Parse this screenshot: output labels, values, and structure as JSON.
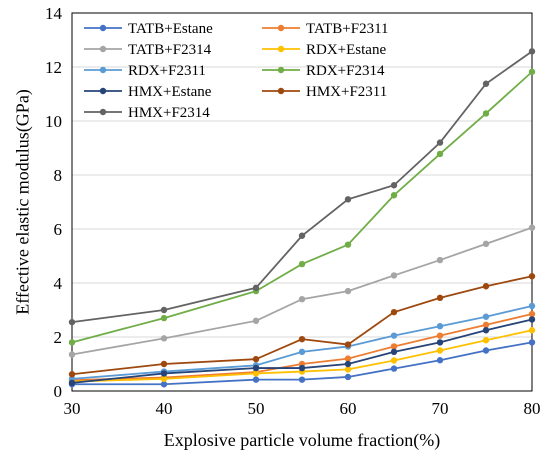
{
  "chart_data": {
    "type": "line",
    "title": "",
    "xlabel": "Explosive particle volume fraction(%)",
    "ylabel": "Effective elastic modulus(GPa)",
    "xlim": [
      30,
      80
    ],
    "ylim": [
      0,
      14
    ],
    "x_ticks": [
      30,
      40,
      50,
      60,
      70,
      80
    ],
    "y_ticks": [
      0,
      2,
      4,
      6,
      8,
      10,
      12,
      14
    ],
    "grid": "y",
    "legend_position": "top-left",
    "x": [
      30,
      40,
      50,
      55,
      60,
      65,
      70,
      75,
      80
    ],
    "series": [
      {
        "name": "TATB+Estane",
        "color": "#4472C4",
        "values": [
          0.25,
          0.25,
          0.42,
          0.42,
          0.52,
          0.83,
          1.14,
          1.5,
          1.8
        ]
      },
      {
        "name": "TATB+F2311",
        "color": "#ED7D31",
        "values": [
          0.4,
          0.5,
          0.7,
          1.0,
          1.2,
          1.65,
          2.05,
          2.45,
          2.85
        ]
      },
      {
        "name": "TATB+F2314",
        "color": "#A5A5A5",
        "values": [
          1.35,
          1.95,
          2.6,
          3.4,
          3.7,
          4.28,
          4.85,
          5.45,
          6.05
        ]
      },
      {
        "name": "RDX+Estane",
        "color": "#FFC000",
        "values": [
          0.35,
          0.45,
          0.65,
          0.72,
          0.8,
          1.13,
          1.5,
          1.88,
          2.25
        ]
      },
      {
        "name": "RDX+F2311",
        "color": "#5B9BD5",
        "values": [
          0.45,
          0.72,
          0.95,
          1.45,
          1.65,
          2.05,
          2.4,
          2.75,
          3.15
        ]
      },
      {
        "name": "RDX+F2314",
        "color": "#70AD47",
        "values": [
          1.8,
          2.7,
          3.7,
          4.7,
          5.42,
          7.25,
          8.78,
          10.28,
          11.82
        ]
      },
      {
        "name": "HMX+Estane",
        "color": "#264478",
        "values": [
          0.3,
          0.65,
          0.85,
          0.85,
          1.0,
          1.45,
          1.8,
          2.25,
          2.65
        ]
      },
      {
        "name": "HMX+F2311",
        "color": "#9E480E",
        "values": [
          0.62,
          1.0,
          1.18,
          1.92,
          1.72,
          2.92,
          3.45,
          3.88,
          4.25
        ]
      },
      {
        "name": "HMX+F2314",
        "color": "#636363",
        "values": [
          2.55,
          3.0,
          3.82,
          5.75,
          7.1,
          7.62,
          9.2,
          11.38,
          12.58
        ]
      }
    ]
  }
}
